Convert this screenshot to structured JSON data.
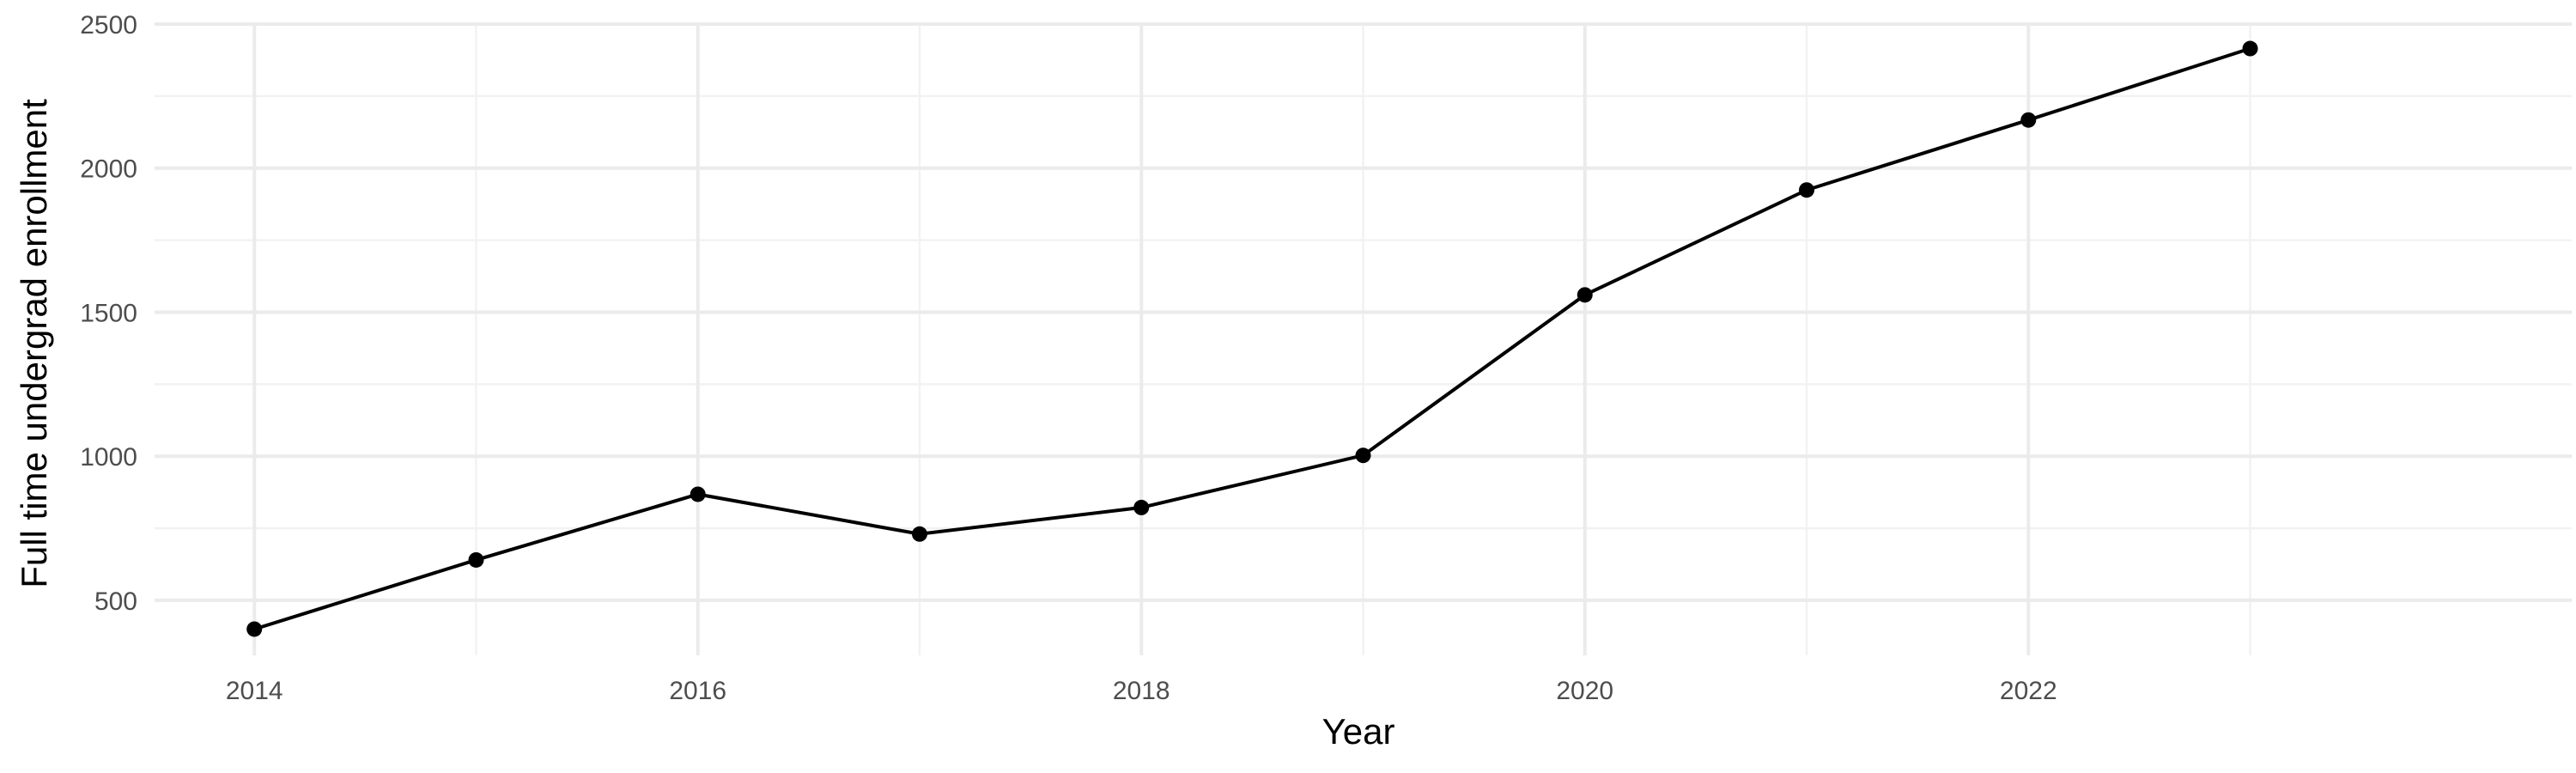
{
  "chart_data": {
    "type": "line",
    "title": "",
    "xlabel": "Year",
    "ylabel": "Full time undergrad enrollment",
    "x": [
      2014,
      2015,
      2016,
      2017,
      2018,
      2019,
      2020,
      2021,
      2022,
      2023
    ],
    "series": [
      {
        "values": [
          400,
          640,
          868,
          730,
          822,
          1003,
          1560,
          1924,
          2167,
          2415
        ]
      }
    ],
    "x_ticks": [
      2014,
      2016,
      2018,
      2020,
      2022
    ],
    "x_tick_labels": [
      "2014",
      "2016",
      "2018",
      "2020",
      "2022"
    ],
    "y_ticks": [
      500,
      1000,
      1500,
      2000,
      2500
    ],
    "y_tick_labels": [
      "500",
      "1000",
      "1500",
      "2000",
      "2500"
    ],
    "xlim": [
      2013.55,
      2024.45
    ],
    "ylim": [
      309,
      2500
    ],
    "grid": true,
    "legend": "none",
    "line_color": "#000000",
    "grid_color": "#ebebeb"
  }
}
